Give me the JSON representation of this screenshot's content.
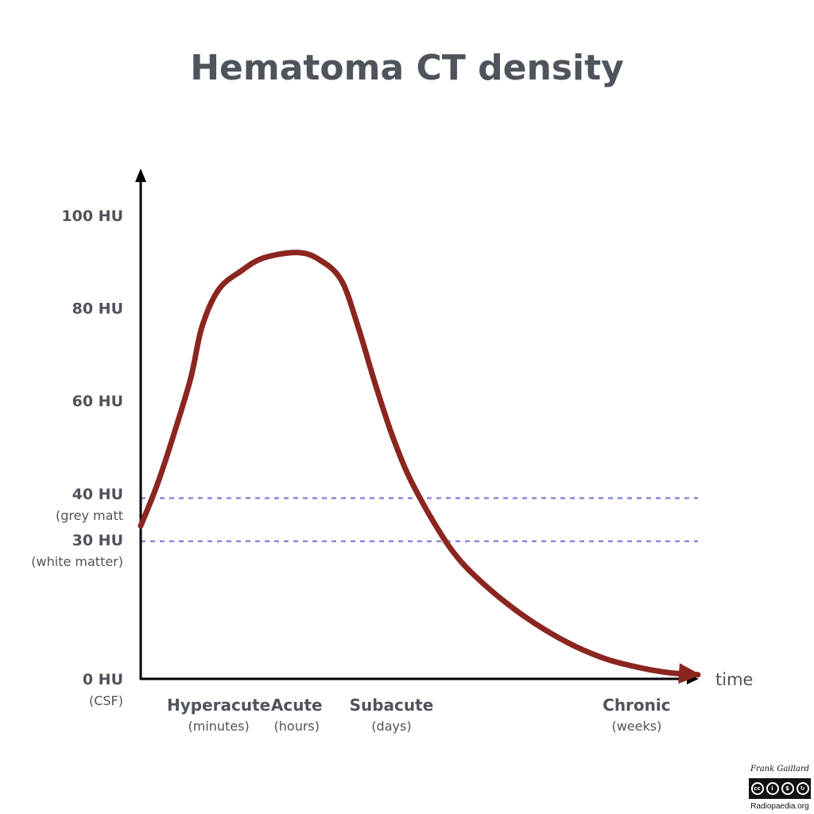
{
  "chart_data": {
    "type": "line",
    "title": "Hematoma CT density",
    "xlabel": "time",
    "ylabel": "",
    "ylim": [
      0,
      100
    ],
    "y_ticks": [
      {
        "value": 100,
        "label": "100 HU",
        "sub": ""
      },
      {
        "value": 80,
        "label": "80 HU",
        "sub": ""
      },
      {
        "value": 60,
        "label": "60 HU",
        "sub": ""
      },
      {
        "value": 40,
        "label": "40 HU",
        "sub": "(grey matt"
      },
      {
        "value": 30,
        "label": "30 HU",
        "sub": "(white matter)"
      },
      {
        "value": 0,
        "label": "0 HU",
        "sub": "(CSF)"
      }
    ],
    "categories": [
      {
        "label": "Hyperacute",
        "sub": "(minutes)",
        "x": 0.14
      },
      {
        "label": "Acute",
        "sub": "(hours)",
        "x": 0.28
      },
      {
        "label": "Subacute",
        "sub": "(days)",
        "x": 0.45
      },
      {
        "label": "Chronic",
        "sub": "(weeks)",
        "x": 0.89
      }
    ],
    "reference_lines": [
      {
        "value": 39,
        "name": "grey matter"
      },
      {
        "value": 29.7,
        "name": "white matter"
      }
    ],
    "series": [
      {
        "name": "",
        "color": "#8b2520",
        "points": [
          [
            0.0,
            33
          ],
          [
            0.03,
            42
          ],
          [
            0.06,
            53
          ],
          [
            0.09,
            65
          ],
          [
            0.11,
            76
          ],
          [
            0.14,
            84
          ],
          [
            0.18,
            88
          ],
          [
            0.22,
            90.8
          ],
          [
            0.28,
            92
          ],
          [
            0.32,
            90.5
          ],
          [
            0.36,
            86
          ],
          [
            0.39,
            76
          ],
          [
            0.42,
            64
          ],
          [
            0.45,
            53
          ],
          [
            0.48,
            44
          ],
          [
            0.52,
            35
          ],
          [
            0.56,
            27.5
          ],
          [
            0.6,
            22.2
          ],
          [
            0.66,
            16
          ],
          [
            0.72,
            11
          ],
          [
            0.78,
            7
          ],
          [
            0.84,
            4.1
          ],
          [
            0.9,
            2.3
          ],
          [
            0.95,
            1.3
          ],
          [
            1.0,
            0.9
          ]
        ]
      }
    ],
    "grid": false,
    "legend": "none",
    "colors": {
      "curve": "#8b2520",
      "reference": "#8b88d8",
      "axis": "#000000",
      "text": "#4f535b"
    }
  },
  "credit": {
    "author": "Frank Gaillard",
    "license_icons": [
      "cc",
      "by",
      "nc",
      "sa"
    ],
    "site": "Radiopaedia.org"
  }
}
